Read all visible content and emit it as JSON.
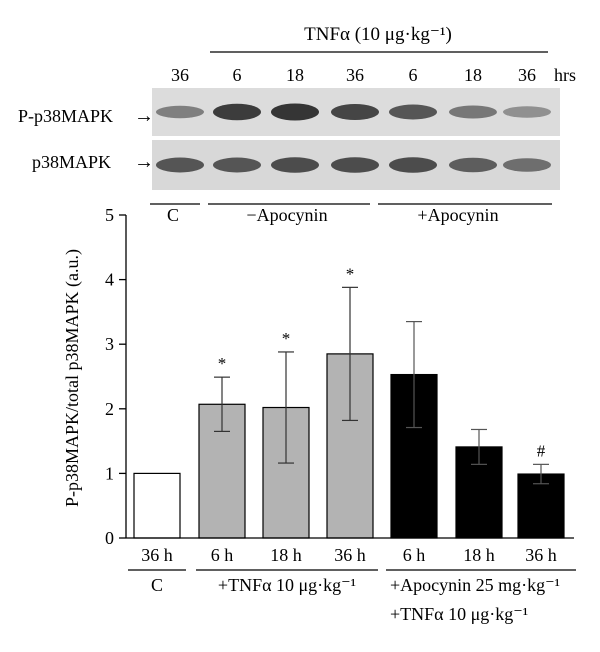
{
  "blot": {
    "treatment_title": "TNFα (10 μg·kg⁻¹)",
    "time_labels": [
      "36",
      "6",
      "18",
      "36",
      "6",
      "18",
      "36"
    ],
    "time_unit": "hrs",
    "rows": [
      {
        "label": "P-p38MAPK",
        "intensities": [
          0.45,
          0.85,
          0.9,
          0.8,
          0.7,
          0.5,
          0.35
        ]
      },
      {
        "label": "p38MAPK",
        "intensities": [
          0.7,
          0.7,
          0.75,
          0.75,
          0.75,
          0.65,
          0.55
        ]
      }
    ],
    "arrow": "→",
    "groups": [
      "C",
      "−Apocynin",
      "+Apocynin"
    ]
  },
  "chart_data": {
    "type": "bar",
    "ylabel": "P-p38MAPK/total p38MAPK (a.u.)",
    "ylim": [
      0,
      5
    ],
    "yticks": [
      "0",
      "1",
      "2",
      "3",
      "4",
      "5"
    ],
    "categories": [
      "36 h",
      "6 h",
      "18 h",
      "36 h",
      "6 h",
      "18 h",
      "36 h"
    ],
    "values": [
      1.0,
      2.07,
      2.02,
      2.85,
      2.53,
      1.41,
      0.99
    ],
    "errors": [
      0,
      0.42,
      0.86,
      1.03,
      0.82,
      0.27,
      0.15
    ],
    "bar_colors": [
      "#ffffff",
      "#b3b3b3",
      "#b3b3b3",
      "#b3b3b3",
      "#000000",
      "#000000",
      "#000000"
    ],
    "annotations": [
      "",
      "*",
      "*",
      "*",
      "",
      "",
      "#"
    ],
    "groups": [
      {
        "label": "C",
        "label2": ""
      },
      {
        "label": "+TNFα 10 μg·kg⁻¹",
        "label2": ""
      },
      {
        "label": "+Apocynin 25 mg·kg⁻¹",
        "label2": "+TNFα 10 μg·kg⁻¹"
      }
    ]
  }
}
